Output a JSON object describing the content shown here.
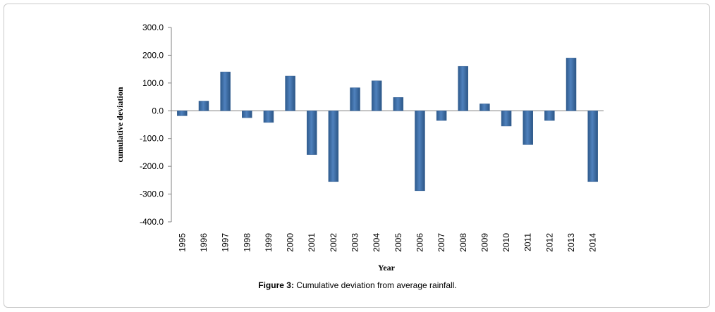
{
  "chart_data": {
    "type": "bar",
    "categories": [
      "1995",
      "1996",
      "1997",
      "1998",
      "1999",
      "2000",
      "2001",
      "2002",
      "2003",
      "2004",
      "2005",
      "2006",
      "2007",
      "2008",
      "2009",
      "2010",
      "2011",
      "2012",
      "2013",
      "2014"
    ],
    "values": [
      -18,
      35,
      140,
      -25,
      -42,
      125,
      -158,
      -255,
      83,
      108,
      48,
      -288,
      -35,
      160,
      25,
      -55,
      -122,
      -35,
      190,
      -255
    ],
    "xlabel": "Year",
    "ylabel": "cumulative deviation",
    "ylim": [
      -400,
      300
    ],
    "yticks": [
      300,
      200,
      100,
      0,
      -100,
      -200,
      -300,
      -400
    ],
    "ytick_labels": [
      "300.0",
      "200.0",
      "100.0",
      "0.0",
      "-100.0",
      "-200.0",
      "-300.0",
      "-400.0"
    ],
    "grid": false,
    "bar_color": "#4f81bd"
  },
  "caption": {
    "label": "Figure 3:",
    "text": " Cumulative deviation from average rainfall."
  }
}
